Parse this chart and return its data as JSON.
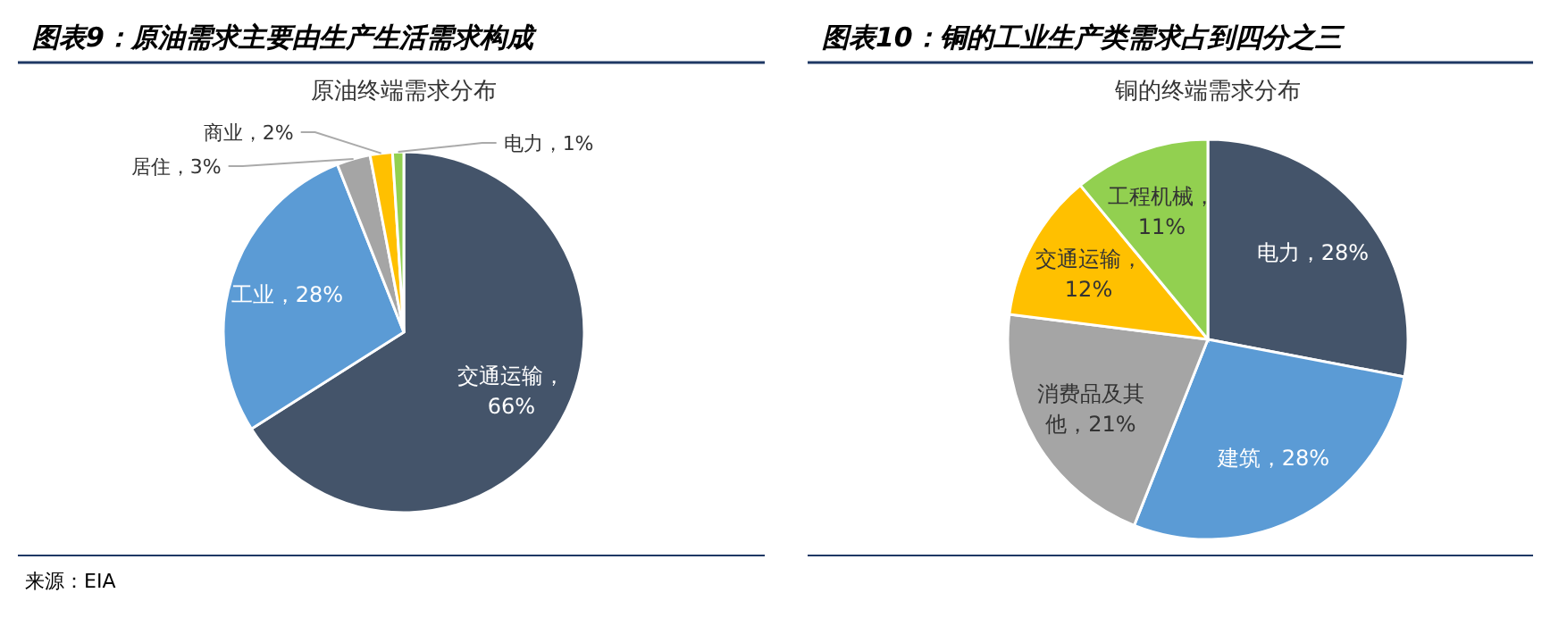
{
  "chart_data": [
    {
      "type": "pie",
      "title": "图表9：原油需求主要由生产生活需求构成",
      "subtitle": "原油终端需求分布",
      "categories": [
        "交通运输",
        "工业",
        "居住",
        "商业",
        "电力"
      ],
      "values": [
        66,
        28,
        3,
        2,
        1
      ],
      "colors": [
        "#44546a",
        "#5b9bd5",
        "#a5a5a5",
        "#ffc000",
        "#92d050"
      ],
      "value_labels": [
        "，66%",
        "，28%",
        "，3%",
        "，2%",
        "，1%"
      ],
      "annotations": [
        "来源：EIA"
      ],
      "legend": false
    },
    {
      "type": "pie",
      "title": "图表10：铜的工业生产类需求占到四分之三",
      "subtitle": "铜的终端需求分布",
      "categories": [
        "电力",
        "建筑",
        "消费品及其他",
        "交通运输",
        "工程机械"
      ],
      "values": [
        28,
        28,
        21,
        12,
        11
      ],
      "colors": [
        "#44546a",
        "#5b9bd5",
        "#a5a5a5",
        "#ffc000",
        "#92d050"
      ],
      "value_labels": [
        "，28%",
        "，28%",
        "，21%",
        "，12%",
        "，11%"
      ],
      "legend": false
    }
  ]
}
